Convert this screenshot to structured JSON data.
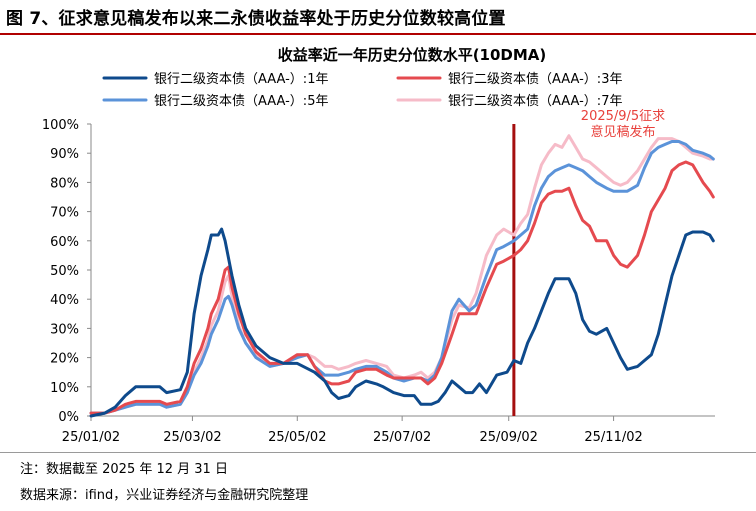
{
  "figure": {
    "title": "图 7、征求意见稿发布以来二永债收益率处于历史分位数较高位置",
    "footnote": "注：数据截至 2025 年 12 月 31 日",
    "source": "数据来源：ifind，兴业证券经济与金融研究院整理"
  },
  "chart_data": {
    "type": "line",
    "title": "收益率近一年历史分位数水平(10DMA)",
    "xlabel": "",
    "ylabel": "",
    "x_range": [
      0,
      363
    ],
    "ylim": [
      0,
      100
    ],
    "y_ticks": [
      0,
      10,
      20,
      30,
      40,
      50,
      60,
      70,
      80,
      90,
      100
    ],
    "y_tick_labels": [
      "0%",
      "10%",
      "20%",
      "30%",
      "40%",
      "50%",
      "60%",
      "70%",
      "80%",
      "90%",
      "100%"
    ],
    "x_ticks": [
      0,
      59,
      120,
      181,
      243,
      304
    ],
    "x_tick_labels": [
      "25/01/02",
      "25/03/02",
      "25/05/02",
      "25/07/02",
      "25/09/02",
      "25/11/02"
    ],
    "x_unit": "days since 25/01/02",
    "annotation": {
      "x": 246,
      "line_color": "#A50E0E",
      "text_color": "#E8413C",
      "lines": [
        "2025/9/5征求",
        "意见稿发布"
      ]
    },
    "series": [
      {
        "name": "银行二级资本债（AAA-）:1年",
        "color": "#0E4A8C",
        "points": [
          [
            0,
            0
          ],
          [
            8,
            1
          ],
          [
            14,
            3
          ],
          [
            20,
            7
          ],
          [
            26,
            10
          ],
          [
            40,
            10
          ],
          [
            44,
            8
          ],
          [
            52,
            9
          ],
          [
            56,
            15
          ],
          [
            60,
            35
          ],
          [
            64,
            48
          ],
          [
            68,
            57
          ],
          [
            70,
            62
          ],
          [
            74,
            62
          ],
          [
            76,
            64
          ],
          [
            78,
            60
          ],
          [
            82,
            48
          ],
          [
            86,
            38
          ],
          [
            90,
            30
          ],
          [
            96,
            24
          ],
          [
            104,
            20
          ],
          [
            112,
            18
          ],
          [
            120,
            18
          ],
          [
            130,
            15
          ],
          [
            136,
            12
          ],
          [
            140,
            8
          ],
          [
            144,
            6
          ],
          [
            150,
            7
          ],
          [
            154,
            10
          ],
          [
            160,
            12
          ],
          [
            166,
            11
          ],
          [
            170,
            10
          ],
          [
            176,
            8
          ],
          [
            182,
            7
          ],
          [
            188,
            7
          ],
          [
            192,
            4
          ],
          [
            198,
            4
          ],
          [
            202,
            5
          ],
          [
            206,
            8
          ],
          [
            210,
            12
          ],
          [
            214,
            10
          ],
          [
            218,
            8
          ],
          [
            222,
            8
          ],
          [
            226,
            11
          ],
          [
            230,
            8
          ],
          [
            236,
            14
          ],
          [
            242,
            15
          ],
          [
            246,
            19
          ],
          [
            250,
            18
          ],
          [
            254,
            25
          ],
          [
            258,
            30
          ],
          [
            262,
            36
          ],
          [
            266,
            42
          ],
          [
            270,
            47
          ],
          [
            274,
            47
          ],
          [
            278,
            47
          ],
          [
            282,
            42
          ],
          [
            286,
            33
          ],
          [
            290,
            29
          ],
          [
            294,
            28
          ],
          [
            300,
            30
          ],
          [
            304,
            25
          ],
          [
            308,
            20
          ],
          [
            312,
            16
          ],
          [
            318,
            17
          ],
          [
            322,
            19
          ],
          [
            326,
            21
          ],
          [
            330,
            28
          ],
          [
            334,
            38
          ],
          [
            338,
            48
          ],
          [
            342,
            55
          ],
          [
            346,
            62
          ],
          [
            350,
            63
          ],
          [
            356,
            63
          ],
          [
            360,
            62
          ],
          [
            362,
            60
          ]
        ]
      },
      {
        "name": "银行二级资本债（AAA-）:3年",
        "color": "#E54A4F",
        "points": [
          [
            0,
            1
          ],
          [
            8,
            1
          ],
          [
            14,
            2
          ],
          [
            20,
            4
          ],
          [
            26,
            5
          ],
          [
            40,
            5
          ],
          [
            44,
            4
          ],
          [
            52,
            5
          ],
          [
            56,
            10
          ],
          [
            60,
            18
          ],
          [
            64,
            23
          ],
          [
            68,
            30
          ],
          [
            70,
            35
          ],
          [
            74,
            40
          ],
          [
            78,
            50
          ],
          [
            80,
            51
          ],
          [
            82,
            44
          ],
          [
            86,
            35
          ],
          [
            90,
            28
          ],
          [
            96,
            22
          ],
          [
            104,
            18
          ],
          [
            112,
            18
          ],
          [
            120,
            21
          ],
          [
            126,
            21
          ],
          [
            130,
            17
          ],
          [
            136,
            12
          ],
          [
            140,
            11
          ],
          [
            144,
            11
          ],
          [
            150,
            12
          ],
          [
            154,
            15
          ],
          [
            160,
            16
          ],
          [
            166,
            16
          ],
          [
            172,
            14
          ],
          [
            176,
            13
          ],
          [
            182,
            13
          ],
          [
            188,
            13
          ],
          [
            192,
            13
          ],
          [
            196,
            11
          ],
          [
            200,
            13
          ],
          [
            204,
            18
          ],
          [
            210,
            28
          ],
          [
            214,
            35
          ],
          [
            220,
            35
          ],
          [
            224,
            35
          ],
          [
            230,
            44
          ],
          [
            236,
            52
          ],
          [
            240,
            53
          ],
          [
            246,
            55
          ],
          [
            250,
            57
          ],
          [
            254,
            60
          ],
          [
            258,
            66
          ],
          [
            262,
            73
          ],
          [
            266,
            76
          ],
          [
            270,
            77
          ],
          [
            274,
            77
          ],
          [
            278,
            78
          ],
          [
            282,
            72
          ],
          [
            286,
            67
          ],
          [
            290,
            65
          ],
          [
            294,
            60
          ],
          [
            300,
            60
          ],
          [
            304,
            55
          ],
          [
            308,
            52
          ],
          [
            312,
            51
          ],
          [
            318,
            55
          ],
          [
            322,
            62
          ],
          [
            326,
            70
          ],
          [
            330,
            74
          ],
          [
            334,
            78
          ],
          [
            338,
            84
          ],
          [
            342,
            86
          ],
          [
            346,
            87
          ],
          [
            350,
            86
          ],
          [
            356,
            80
          ],
          [
            360,
            77
          ],
          [
            362,
            75
          ]
        ]
      },
      {
        "name": "银行二级资本债（AAA-）:5年",
        "color": "#5B93D9",
        "points": [
          [
            0,
            1
          ],
          [
            8,
            1
          ],
          [
            14,
            2
          ],
          [
            20,
            3
          ],
          [
            26,
            4
          ],
          [
            40,
            4
          ],
          [
            44,
            3
          ],
          [
            52,
            4
          ],
          [
            56,
            8
          ],
          [
            60,
            14
          ],
          [
            64,
            18
          ],
          [
            68,
            24
          ],
          [
            70,
            28
          ],
          [
            74,
            33
          ],
          [
            78,
            40
          ],
          [
            80,
            41
          ],
          [
            82,
            38
          ],
          [
            86,
            30
          ],
          [
            90,
            25
          ],
          [
            96,
            20
          ],
          [
            104,
            17
          ],
          [
            112,
            18
          ],
          [
            120,
            20
          ],
          [
            126,
            21
          ],
          [
            130,
            17
          ],
          [
            136,
            14
          ],
          [
            140,
            14
          ],
          [
            144,
            14
          ],
          [
            150,
            15
          ],
          [
            154,
            16
          ],
          [
            160,
            17
          ],
          [
            166,
            17
          ],
          [
            172,
            15
          ],
          [
            176,
            13
          ],
          [
            182,
            12
          ],
          [
            188,
            13
          ],
          [
            192,
            13
          ],
          [
            196,
            12
          ],
          [
            200,
            14
          ],
          [
            204,
            20
          ],
          [
            210,
            36
          ],
          [
            214,
            40
          ],
          [
            220,
            36
          ],
          [
            224,
            38
          ],
          [
            230,
            48
          ],
          [
            236,
            57
          ],
          [
            240,
            58
          ],
          [
            246,
            60
          ],
          [
            250,
            62
          ],
          [
            254,
            64
          ],
          [
            258,
            72
          ],
          [
            262,
            78
          ],
          [
            266,
            82
          ],
          [
            270,
            84
          ],
          [
            274,
            85
          ],
          [
            278,
            86
          ],
          [
            282,
            85
          ],
          [
            286,
            84
          ],
          [
            290,
            82
          ],
          [
            294,
            80
          ],
          [
            300,
            78
          ],
          [
            304,
            77
          ],
          [
            308,
            77
          ],
          [
            312,
            77
          ],
          [
            318,
            79
          ],
          [
            322,
            85
          ],
          [
            326,
            90
          ],
          [
            330,
            92
          ],
          [
            334,
            93
          ],
          [
            338,
            94
          ],
          [
            342,
            94
          ],
          [
            346,
            93
          ],
          [
            350,
            91
          ],
          [
            356,
            90
          ],
          [
            360,
            89
          ],
          [
            362,
            88
          ]
        ]
      },
      {
        "name": "银行二级资本债（AAA-）:7年",
        "color": "#F6BBC8",
        "points": [
          [
            0,
            1
          ],
          [
            8,
            1
          ],
          [
            14,
            2
          ],
          [
            20,
            3
          ],
          [
            26,
            4
          ],
          [
            40,
            4
          ],
          [
            44,
            3
          ],
          [
            52,
            4
          ],
          [
            56,
            8
          ],
          [
            60,
            15
          ],
          [
            64,
            20
          ],
          [
            68,
            26
          ],
          [
            70,
            31
          ],
          [
            74,
            36
          ],
          [
            78,
            46
          ],
          [
            80,
            48
          ],
          [
            82,
            41
          ],
          [
            86,
            31
          ],
          [
            90,
            25
          ],
          [
            96,
            21
          ],
          [
            104,
            17
          ],
          [
            112,
            18
          ],
          [
            120,
            21
          ],
          [
            126,
            21
          ],
          [
            130,
            20
          ],
          [
            136,
            17
          ],
          [
            140,
            17
          ],
          [
            144,
            16
          ],
          [
            150,
            17
          ],
          [
            154,
            18
          ],
          [
            160,
            19
          ],
          [
            166,
            18
          ],
          [
            172,
            17
          ],
          [
            176,
            14
          ],
          [
            182,
            13
          ],
          [
            188,
            14
          ],
          [
            192,
            15
          ],
          [
            196,
            13
          ],
          [
            200,
            15
          ],
          [
            204,
            20
          ],
          [
            210,
            33
          ],
          [
            214,
            38
          ],
          [
            220,
            37
          ],
          [
            224,
            42
          ],
          [
            230,
            55
          ],
          [
            236,
            62
          ],
          [
            240,
            64
          ],
          [
            246,
            62
          ],
          [
            250,
            66
          ],
          [
            254,
            69
          ],
          [
            258,
            78
          ],
          [
            262,
            86
          ],
          [
            266,
            90
          ],
          [
            270,
            93
          ],
          [
            274,
            92
          ],
          [
            278,
            96
          ],
          [
            282,
            92
          ],
          [
            286,
            88
          ],
          [
            290,
            87
          ],
          [
            294,
            85
          ],
          [
            300,
            82
          ],
          [
            304,
            80
          ],
          [
            308,
            79
          ],
          [
            312,
            80
          ],
          [
            318,
            84
          ],
          [
            322,
            88
          ],
          [
            326,
            92
          ],
          [
            330,
            95
          ],
          [
            334,
            95
          ],
          [
            338,
            95
          ],
          [
            342,
            94
          ],
          [
            346,
            92
          ],
          [
            350,
            90
          ],
          [
            356,
            89
          ],
          [
            360,
            88
          ],
          [
            362,
            88
          ]
        ]
      }
    ]
  }
}
